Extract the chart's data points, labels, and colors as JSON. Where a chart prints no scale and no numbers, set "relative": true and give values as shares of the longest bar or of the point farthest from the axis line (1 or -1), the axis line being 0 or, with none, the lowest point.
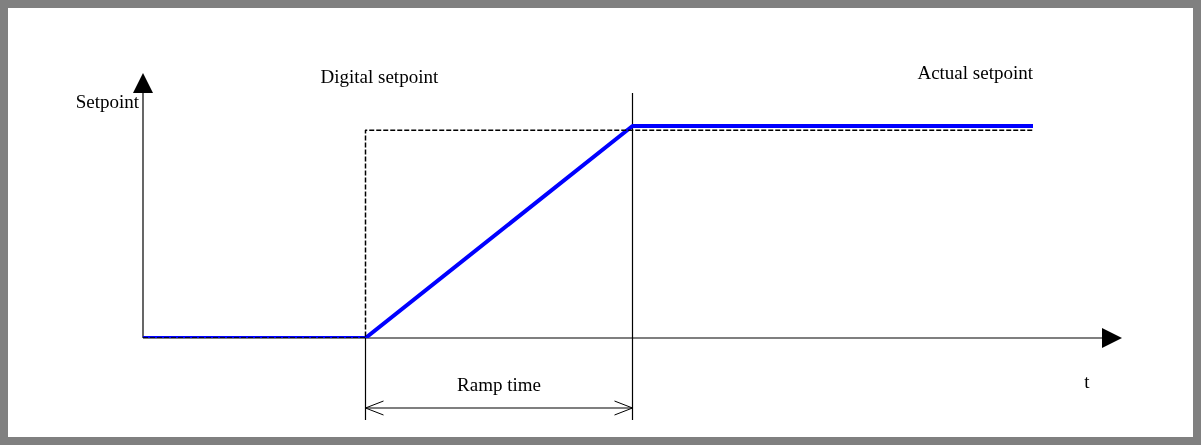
{
  "chart_data": {
    "type": "line",
    "relative": true,
    "ylabel": "Setpoint",
    "xlabel": "t",
    "marker": "none",
    "categories": [
      null,
      null,
      null,
      null,
      null,
      null,
      null,
      null,
      null,
      null,
      null,
      null,
      null,
      null,
      null,
      null,
      null,
      null,
      null,
      null,
      null
    ],
    "series": [
      {
        "name": "Digital setpoint",
        "type": "step",
        "color": "#000000",
        "line_style": "dashed",
        "values": [
          0,
          null,
          null,
          null,
          0,
          0.98,
          null,
          null,
          null,
          null,
          null,
          null,
          null,
          null,
          null,
          null,
          null,
          null,
          null,
          null,
          0.98
        ]
      },
      {
        "name": "Actual setpoint",
        "type": "line",
        "color": "#0000ff",
        "line_style": "solid",
        "values": [
          0,
          null,
          null,
          null,
          null,
          0,
          null,
          null,
          null,
          null,
          null,
          1,
          null,
          null,
          null,
          null,
          null,
          null,
          null,
          null,
          1
        ]
      }
    ],
    "annotations": [
      "Ramp time"
    ]
  }
}
